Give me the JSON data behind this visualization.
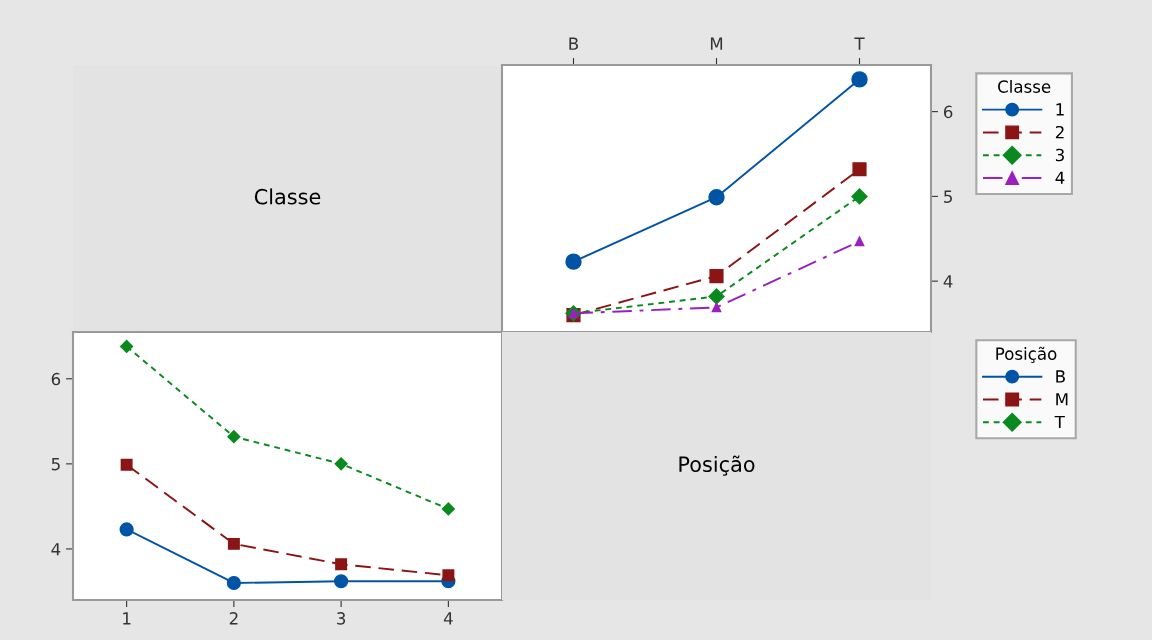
{
  "chart_data": [
    {
      "type": "other",
      "title": "Classe"
    },
    {
      "type": "line",
      "categories": [
        "B",
        "M",
        "T"
      ],
      "ylim": [
        3.4,
        6.55
      ],
      "yticks": [
        4,
        5,
        6
      ],
      "legend": "right",
      "legend_title": "Classe",
      "grid": false,
      "series": [
        {
          "name": "1",
          "color": "#0054a6",
          "marker": "circle",
          "line_style": "solid",
          "values": [
            4.23,
            4.99,
            6.38
          ]
        },
        {
          "name": "2",
          "color": "#8b1414",
          "marker": "square",
          "line_style": "dashed",
          "values": [
            3.6,
            4.06,
            5.32
          ]
        },
        {
          "name": "3",
          "color": "#0a8a1e",
          "marker": "diamond",
          "line_style": "dotted",
          "values": [
            3.62,
            3.82,
            5.0
          ]
        },
        {
          "name": "4",
          "color": "#9a1fc0",
          "marker": "triangle",
          "line_style": "dashdot",
          "values": [
            3.62,
            3.69,
            4.47
          ]
        }
      ]
    },
    {
      "type": "line",
      "categories": [
        "1",
        "2",
        "3",
        "4"
      ],
      "ylim": [
        3.4,
        6.55
      ],
      "yticks": [
        4,
        5,
        6
      ],
      "legend": "right",
      "legend_title": "Posição",
      "grid": false,
      "series": [
        {
          "name": "B",
          "color": "#0054a6",
          "marker": "circle",
          "line_style": "solid",
          "values": [
            4.23,
            3.6,
            3.62,
            3.62
          ]
        },
        {
          "name": "M",
          "color": "#8b1414",
          "marker": "square",
          "line_style": "dashed",
          "values": [
            4.99,
            4.06,
            3.82,
            3.69
          ]
        },
        {
          "name": "T",
          "color": "#0a8a1e",
          "marker": "diamond",
          "line_style": "dotted",
          "values": [
            6.38,
            5.32,
            5.0,
            4.47
          ]
        }
      ]
    },
    {
      "type": "other",
      "title": "Posição"
    }
  ]
}
